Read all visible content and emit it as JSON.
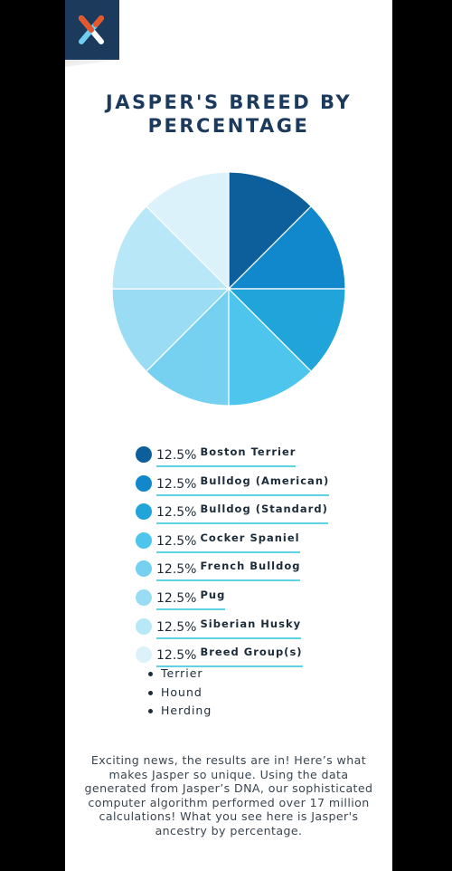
{
  "title_line1": "JASPER'S BREED BY",
  "title_line2": "PERCENTAGE",
  "chart_data": {
    "type": "pie",
    "title": "JASPER'S BREED BY PERCENTAGE",
    "categories": [
      "Boston Terrier",
      "Bulldog (American)",
      "Bulldog (Standard)",
      "Cocker Spaniel",
      "French Bulldog",
      "Pug",
      "Siberian Husky",
      "Breed Group(s)"
    ],
    "values": [
      12.5,
      12.5,
      12.5,
      12.5,
      12.5,
      12.5,
      12.5,
      12.5
    ],
    "labels": [
      "12.5%",
      "12.5%",
      "12.5%",
      "12.5%",
      "12.5%",
      "12.5%",
      "12.5%",
      "12.5%"
    ],
    "colors": [
      "#0d5f9c",
      "#1288cc",
      "#21a4d9",
      "#4ec5ec",
      "#76d1f1",
      "#99dcf3",
      "#b8e7f7",
      "#dcf2fa"
    ]
  },
  "breed_groups": [
    "Terrier",
    "Hound",
    "Herding"
  ],
  "paragraph": "Exciting news, the results are in! Here’s what makes Jasper so unique. Using the data generated from Jasper’s DNA, our sophisticated computer algorithm performed over 17 million calculations! What you see here is Jasper's ancestry by percentage.",
  "logo_colors": {
    "bg": "#1c3a5c",
    "orange": "#e8572a",
    "light_blue": "#6fcff0",
    "white": "#ffffff"
  }
}
